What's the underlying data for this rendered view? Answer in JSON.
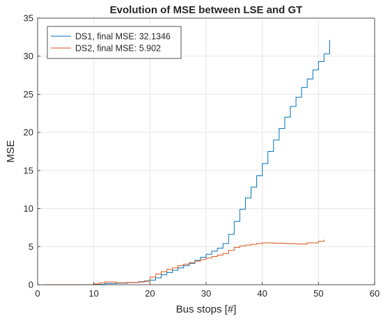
{
  "chart_data": {
    "type": "line",
    "title": "Evolution of MSE between LSE and GT",
    "xlabel": "Bus stops [#]",
    "ylabel": "MSE",
    "xlim": [
      0,
      60
    ],
    "ylim": [
      0,
      35
    ],
    "xticks": [
      0,
      10,
      20,
      30,
      40,
      50,
      60
    ],
    "yticks": [
      0,
      5,
      10,
      15,
      20,
      25,
      30,
      35
    ],
    "grid": true,
    "legend_position": "top-left",
    "series": [
      {
        "name": "DS1, final MSE: 32.1346",
        "color": "#0072BD",
        "step": true,
        "x": [
          1,
          10,
          12,
          14,
          16,
          18,
          19,
          20,
          21,
          22,
          23,
          24,
          25,
          26,
          27,
          28,
          29,
          30,
          31,
          32,
          33,
          34,
          35,
          36,
          37,
          38,
          39,
          40,
          41,
          42,
          43,
          44,
          45,
          46,
          47,
          48,
          49,
          50,
          51,
          52
        ],
        "y": [
          0,
          0.05,
          0.15,
          0.2,
          0.3,
          0.4,
          0.5,
          0.6,
          0.9,
          1.3,
          1.6,
          1.9,
          2.2,
          2.5,
          2.8,
          3.2,
          3.6,
          4.0,
          4.4,
          4.8,
          5.4,
          6.6,
          8.3,
          9.9,
          11.4,
          12.8,
          14.3,
          15.9,
          17.5,
          19.0,
          20.5,
          22.0,
          23.4,
          24.6,
          25.9,
          27.0,
          28.2,
          29.3,
          30.3,
          31.2
        ],
        "final": 32.1346
      },
      {
        "name": "DS2, final MSE: 5.902",
        "color": "#D95319",
        "step": true,
        "x": [
          1,
          10,
          11,
          12,
          14,
          16,
          18,
          19,
          20,
          21,
          22,
          23,
          24,
          25,
          26,
          27,
          28,
          29,
          30,
          31,
          32,
          33,
          34,
          35,
          36,
          37,
          38,
          39,
          40,
          42,
          44,
          46,
          48,
          50,
          51
        ],
        "y": [
          0,
          0.1,
          0.25,
          0.35,
          0.25,
          0.3,
          0.35,
          0.45,
          1.0,
          1.4,
          1.7,
          2.0,
          2.2,
          2.5,
          2.7,
          2.9,
          3.1,
          3.3,
          3.5,
          3.7,
          3.9,
          4.1,
          4.5,
          4.9,
          5.1,
          5.2,
          5.3,
          5.4,
          5.5,
          5.45,
          5.4,
          5.35,
          5.5,
          5.7,
          5.9
        ],
        "final": 5.902
      }
    ]
  }
}
